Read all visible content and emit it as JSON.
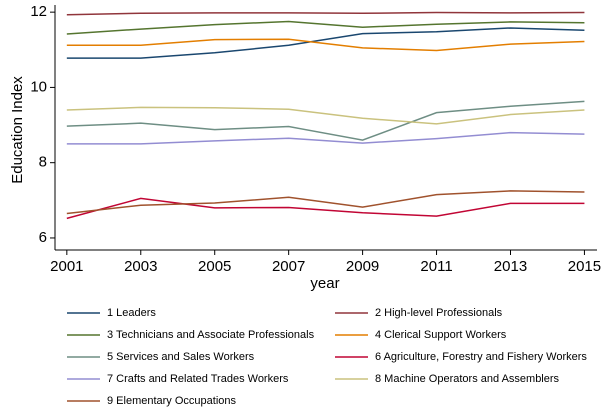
{
  "chart_data": {
    "type": "line",
    "x_label": "year",
    "y_label": "Education Index",
    "x": [
      2001,
      2003,
      2005,
      2007,
      2009,
      2011,
      2013,
      2015
    ],
    "xlim": [
      2000.68,
      2015.34
    ],
    "xticks": [
      2001,
      2003,
      2005,
      2007,
      2009,
      2011,
      2013,
      2015
    ],
    "ylim": [
      5.68,
      12.19
    ],
    "yticks": [
      6,
      8,
      10,
      12
    ],
    "grid": false,
    "series": [
      {
        "name": "1 Leaders",
        "color": "#1a476f",
        "values": [
          10.78,
          10.78,
          10.92,
          11.12,
          11.43,
          11.48,
          11.58,
          11.52
        ]
      },
      {
        "name": "2 High-level Professionals",
        "color": "#90353b",
        "values": [
          11.93,
          11.97,
          11.98,
          11.98,
          11.97,
          11.99,
          11.98,
          11.99
        ]
      },
      {
        "name": "3 Technicians and Associate Professionals",
        "color": "#55752f",
        "values": [
          11.42,
          11.55,
          11.67,
          11.75,
          11.6,
          11.68,
          11.74,
          11.72
        ]
      },
      {
        "name": "4 Clerical Support Workers",
        "color": "#e37e00",
        "values": [
          11.12,
          11.12,
          11.27,
          11.28,
          11.05,
          10.98,
          11.15,
          11.22
        ]
      },
      {
        "name": "5 Services and Sales Workers",
        "color": "#6e8e84",
        "values": [
          8.97,
          9.05,
          8.88,
          8.96,
          8.6,
          9.33,
          9.5,
          9.63
        ]
      },
      {
        "name": "6 Agriculture, Forestry and Fishery Workers",
        "color": "#c10534",
        "values": [
          6.52,
          7.05,
          6.8,
          6.81,
          6.67,
          6.58,
          6.92,
          6.92
        ]
      },
      {
        "name": "7 Crafts and Related Trades Workers",
        "color": "#938dd2",
        "values": [
          8.5,
          8.5,
          8.58,
          8.65,
          8.52,
          8.64,
          8.8,
          8.76
        ]
      },
      {
        "name": "8 Machine Operators and Assemblers",
        "color": "#cac27e",
        "values": [
          9.4,
          9.47,
          9.46,
          9.42,
          9.18,
          9.03,
          9.28,
          9.4
        ]
      },
      {
        "name": "9 Elementary Occupations",
        "color": "#a0522d",
        "values": [
          6.65,
          6.87,
          6.93,
          7.08,
          6.82,
          7.15,
          7.25,
          7.22
        ]
      }
    ]
  }
}
